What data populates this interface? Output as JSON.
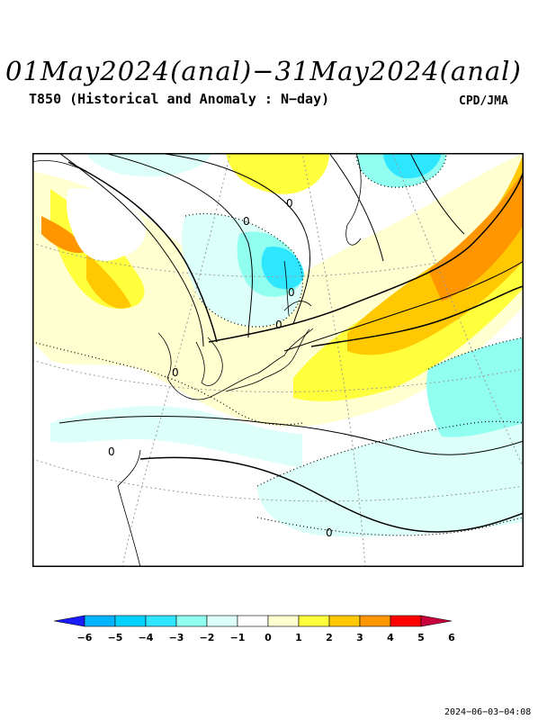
{
  "header": {
    "title": "01May2024(anal)−31May2024(anal)",
    "subtitle": "T850 (Historical and Anomaly : N−day)",
    "credit": "CPD/JMA"
  },
  "map": {
    "contour_labels": [
      "0",
      "0",
      "0",
      "0",
      "0",
      "0",
      "0"
    ]
  },
  "legend": {
    "ticks": [
      "−6",
      "−5",
      "−4",
      "−3",
      "−2",
      "−1",
      "0",
      "1",
      "2",
      "3",
      "4",
      "5",
      "6"
    ],
    "colors": [
      "#1a1aff",
      "#00b4ff",
      "#00d2ff",
      "#2ee6ff",
      "#90fff0",
      "#dcfffa",
      "#ffffff",
      "#ffffd0",
      "#ffff3c",
      "#ffc800",
      "#ff9600",
      "#ff0000",
      "#c8003c"
    ]
  },
  "timestamp": "2024−06−03−04:08"
}
